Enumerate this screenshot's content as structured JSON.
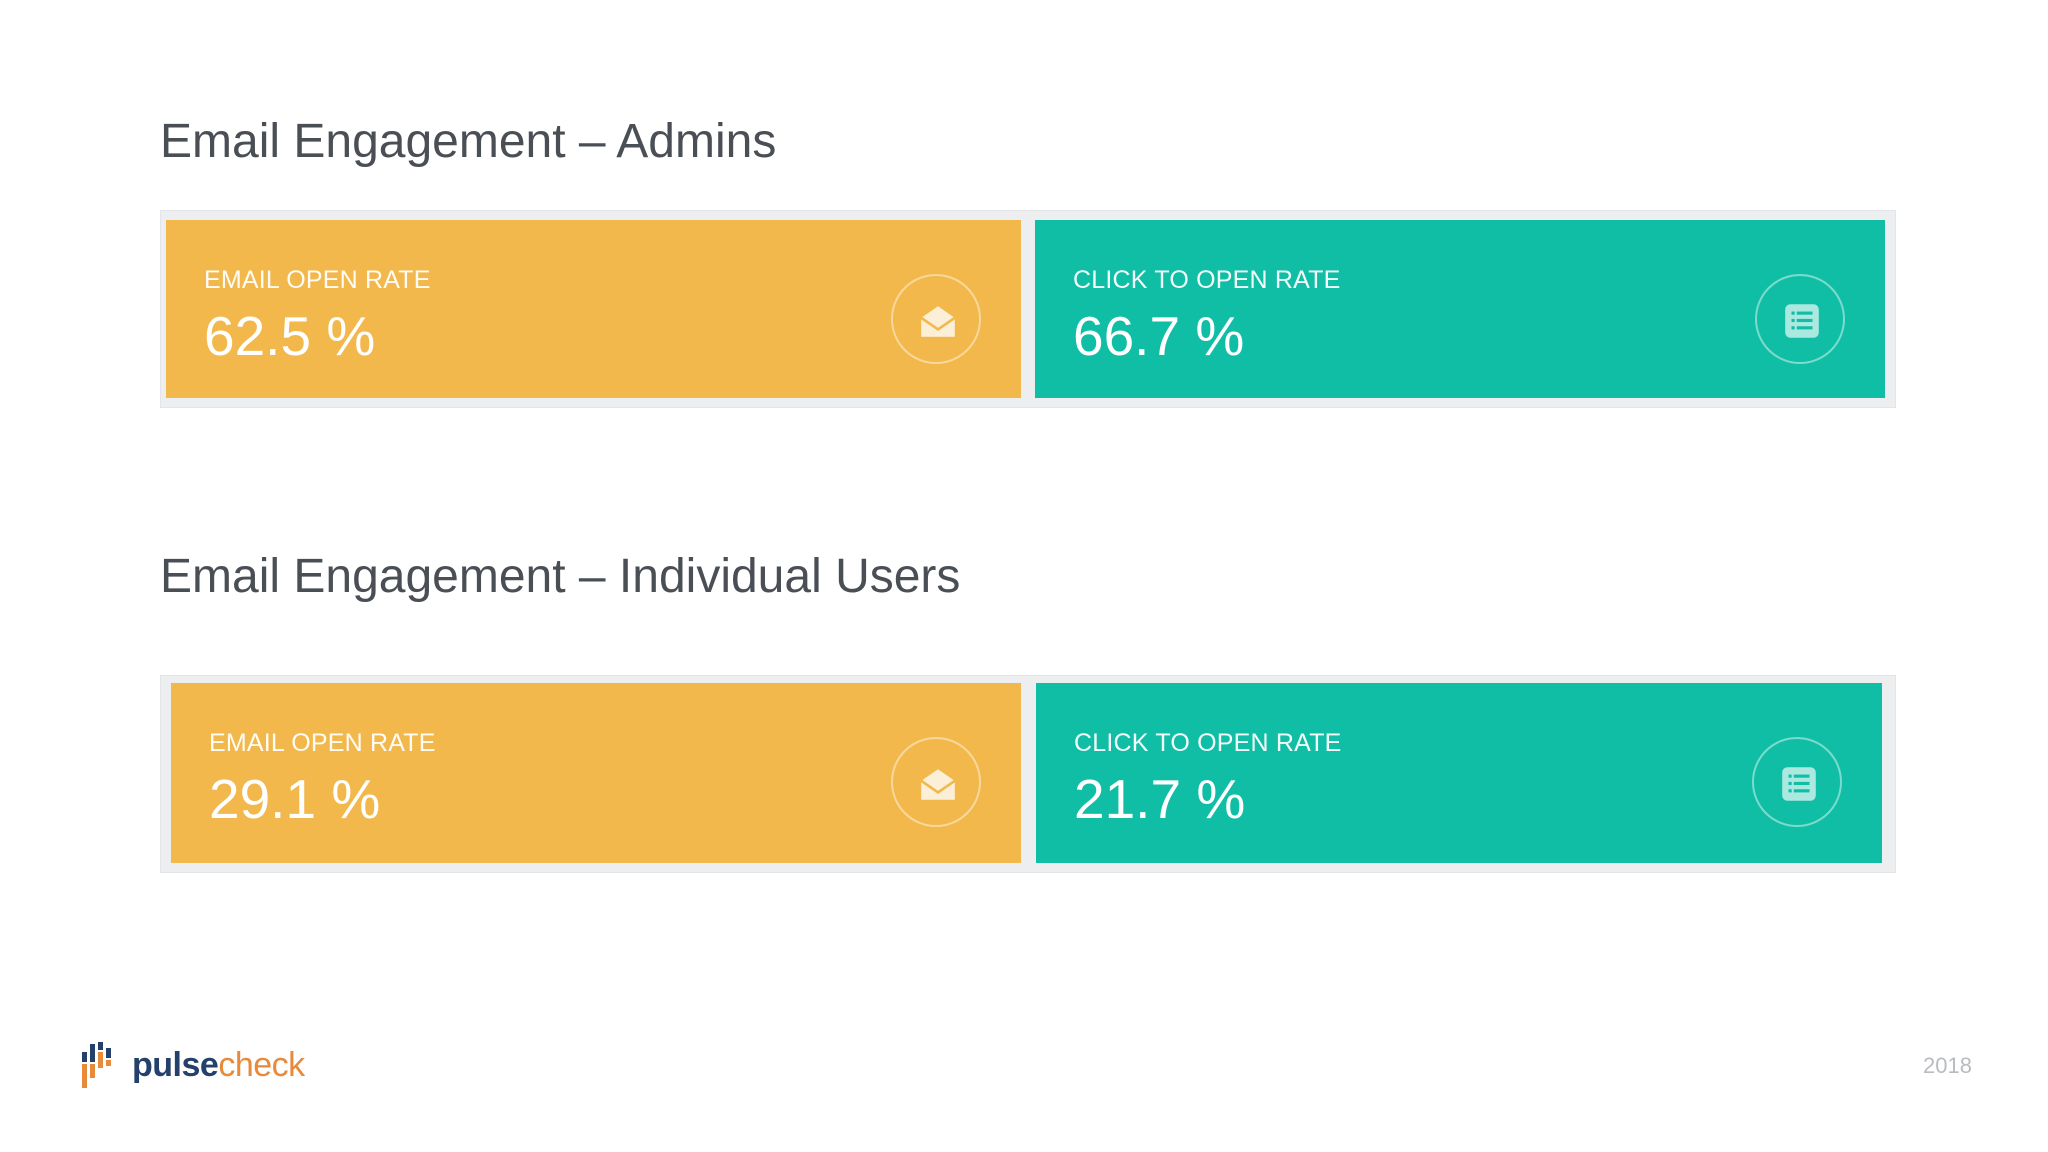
{
  "sections": [
    {
      "title": "Email Engagement – Admins",
      "cards": [
        {
          "label": "EMAIL OPEN RATE",
          "value": "62.5 %",
          "icon": "envelope-open-icon",
          "color": "#f2b84b"
        },
        {
          "label": "CLICK TO OPEN RATE",
          "value": "66.7 %",
          "icon": "list-icon",
          "color": "#10bea6"
        }
      ]
    },
    {
      "title": "Email Engagement – Individual Users",
      "cards": [
        {
          "label": "EMAIL OPEN RATE",
          "value": "29.1 %",
          "icon": "envelope-open-icon",
          "color": "#f2b84b"
        },
        {
          "label": "CLICK TO OPEN RATE",
          "value": "21.7 %",
          "icon": "list-icon",
          "color": "#10bea6"
        }
      ]
    }
  ],
  "logo": {
    "pulse": "pulse",
    "check": "check",
    "icon": "pulsecheck-logo-icon"
  },
  "page_number": "2018",
  "colors": {
    "title_text": "#4a4f56",
    "open_rate": "#f2b84b",
    "click_rate": "#10bea6",
    "logo_navy": "#23416b",
    "logo_orange": "#e9893a"
  }
}
